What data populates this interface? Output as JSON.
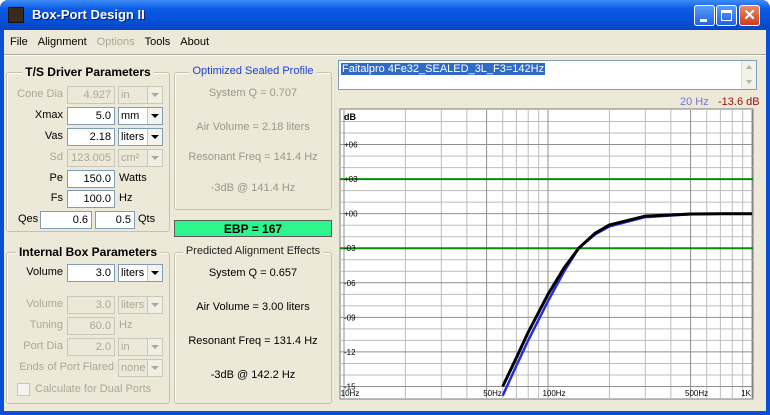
{
  "window": {
    "title": "Box-Port Design II"
  },
  "menu": [
    {
      "label": "File",
      "disabled": false
    },
    {
      "label": "Alignment",
      "disabled": false
    },
    {
      "label": "Options",
      "disabled": true
    },
    {
      "label": "Tools",
      "disabled": false
    },
    {
      "label": "About",
      "disabled": false
    }
  ],
  "ts_driver": {
    "title": "T/S Driver Parameters",
    "rows": [
      {
        "label": "Cone Dia",
        "value": "4.927",
        "unit": "in",
        "dropdown": true,
        "disabled": true
      },
      {
        "label": "Xmax",
        "value": "5.0",
        "unit": "mm",
        "dropdown": true,
        "disabled": false
      },
      {
        "label": "Vas",
        "value": "2.18",
        "unit": "liters",
        "dropdown": true,
        "disabled": false
      },
      {
        "label": "Sd",
        "value": "123.005",
        "unit": "cm²",
        "dropdown": true,
        "disabled": true
      },
      {
        "label": "Pe",
        "value": "150.0",
        "unit": "Watts",
        "dropdown": false,
        "disabled": false
      },
      {
        "label": "Fs",
        "value": "100.0",
        "unit": "Hz",
        "dropdown": false,
        "disabled": false
      }
    ],
    "qes": {
      "label": "Qes",
      "value": "0.6",
      "qts_value": "0.5",
      "qts_label": "Qts"
    }
  },
  "internal_box": {
    "title": "Internal Box Parameters",
    "rows": [
      {
        "label": "Volume",
        "value": "3.0",
        "unit": "liters",
        "dropdown": true,
        "disabled": false
      },
      {
        "label": "Volume",
        "value": "3.0",
        "unit": "liters",
        "dropdown": true,
        "disabled": true
      },
      {
        "label": "Tuning",
        "value": "60.0",
        "unit": "Hz",
        "dropdown": false,
        "disabled": true
      },
      {
        "label": "Port Dia",
        "value": "2.0",
        "unit": "in",
        "dropdown": true,
        "disabled": true
      },
      {
        "label": "Ends of Port Flared",
        "unit": "none",
        "dropdown": true,
        "disabled": true
      }
    ],
    "checkbox": {
      "label": "Calculate for Dual Ports",
      "checked": false,
      "disabled": true
    }
  },
  "optimized": {
    "title": "Optimized Sealed Profile",
    "lines": [
      "System Q = 0.707",
      "Air Volume = 2.18 liters",
      "Resonant Freq = 141.4 Hz",
      "-3dB @ 141.4 Hz"
    ]
  },
  "ebp": "EBP = 167",
  "predicted": {
    "title": "Predicted Alignment Effects",
    "lines": [
      "System Q = 0.657",
      "Air Volume = 3.00 liters",
      "Resonant Freq = 131.4 Hz",
      "-3dB @ 142.2 Hz"
    ]
  },
  "driver_name": "Faitalpro 4Fe32_SEALED_3L_F3=142Hz",
  "readout": {
    "freq": "20 Hz",
    "level": "-13.6 dB"
  },
  "chart_data": {
    "type": "line",
    "y_label": "dB",
    "log_x": true,
    "x": [
      60,
      70,
      80,
      100,
      120,
      141.4,
      170,
      200,
      300,
      500,
      700,
      1000
    ],
    "series": [
      {
        "color": "#2a2ae0",
        "values": [
          -15.8,
          -13.2,
          -11.0,
          -7.6,
          -5.0,
          -3.0,
          -1.8,
          -1.1,
          -0.3,
          -0.05,
          0,
          0
        ]
      },
      {
        "color": "#000000",
        "values": [
          -15.0,
          -12.5,
          -10.3,
          -7.0,
          -4.7,
          -3.0,
          -1.7,
          -0.97,
          -0.21,
          -0.03,
          0,
          0
        ]
      }
    ],
    "xlim": [
      10,
      1000
    ],
    "ylim": [
      -16,
      9
    ],
    "xticks": [
      {
        "value": 10,
        "label": "10Hz"
      },
      {
        "value": 50,
        "label": "50Hz"
      },
      {
        "value": 100,
        "label": "100Hz"
      },
      {
        "value": 500,
        "label": "500Hz"
      },
      {
        "value": 1000,
        "label": "1K"
      }
    ],
    "yticks": [
      {
        "value": 6,
        "label": "+06"
      },
      {
        "value": 3,
        "label": "+03"
      },
      {
        "value": 0,
        "label": "+00"
      },
      {
        "value": -3,
        "label": "-03"
      },
      {
        "value": -6,
        "label": "-06"
      },
      {
        "value": -9,
        "label": "-09"
      },
      {
        "value": -12,
        "label": "-12"
      },
      {
        "value": -15,
        "label": "-15"
      }
    ],
    "minor_grid_x": [
      20,
      30,
      40,
      60,
      70,
      80,
      90,
      200,
      300,
      400,
      600,
      700,
      800,
      900
    ],
    "minor_grid_y": [
      8,
      7,
      5,
      4,
      2,
      1,
      -1,
      -2,
      -4,
      -5,
      -7,
      -8,
      -10,
      -11,
      -13,
      -14
    ],
    "grid": true,
    "reference_lines": {
      "values": [
        3,
        -3
      ],
      "color": "#0a8a0a"
    }
  }
}
